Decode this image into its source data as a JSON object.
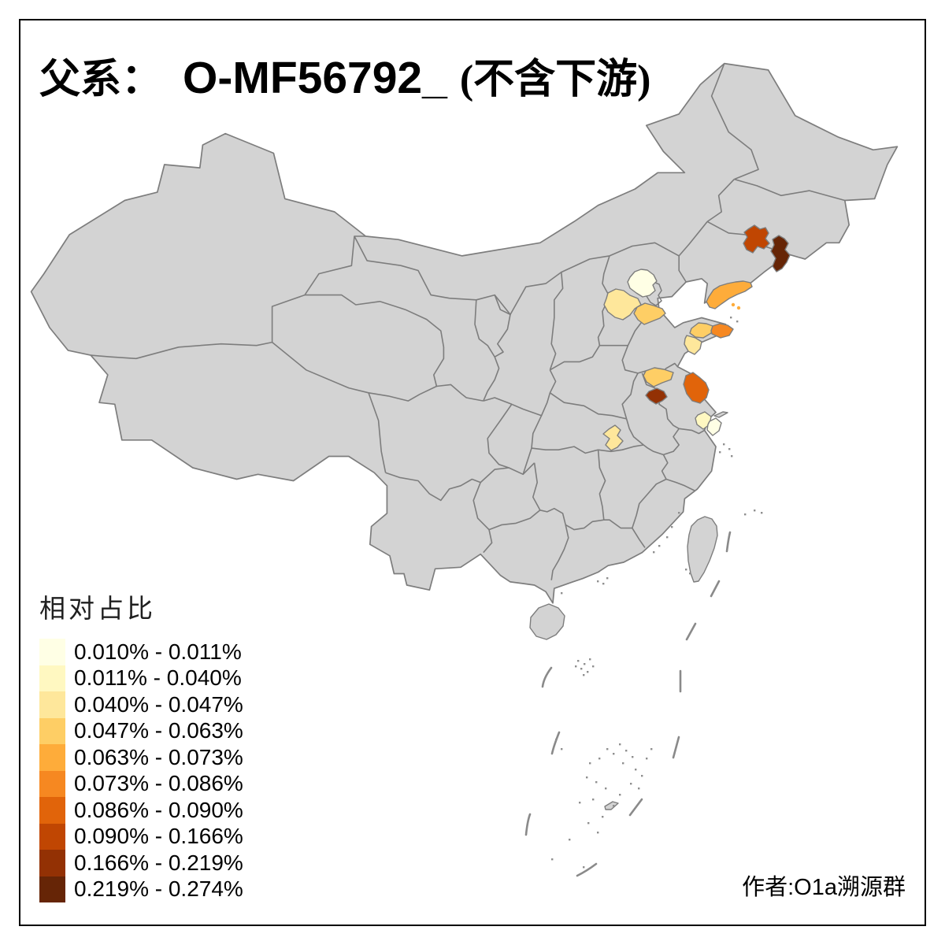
{
  "title": {
    "part1": "父系：",
    "part2": "O-MF56792_",
    "part3": "(不含下游)"
  },
  "legend": {
    "title": "相对占比",
    "items": [
      {
        "label": "0.010% - 0.011%",
        "color": "#FFFFE5"
      },
      {
        "label": "0.011% - 0.040%",
        "color": "#FFF8C1"
      },
      {
        "label": "0.040% - 0.047%",
        "color": "#FEE79B"
      },
      {
        "label": "0.047% - 0.063%",
        "color": "#FECE65"
      },
      {
        "label": "0.063% - 0.073%",
        "color": "#FEAC3A"
      },
      {
        "label": "0.073% - 0.086%",
        "color": "#F68821"
      },
      {
        "label": "0.086% - 0.090%",
        "color": "#E1640A"
      },
      {
        "label": "0.090% - 0.166%",
        "color": "#C04602"
      },
      {
        "label": "0.166% - 0.219%",
        "color": "#933104"
      },
      {
        "label": "0.219% - 0.274%",
        "color": "#662506"
      }
    ]
  },
  "map": {
    "land_fill": "#D3D3D3",
    "border_stroke": "#7D7D7D",
    "sea_fill": "#FFFFFF",
    "frame_color": "#000000"
  },
  "regions": [
    {
      "name": "beijing",
      "bin": 1
    },
    {
      "name": "hebei-baoding",
      "bin": 3
    },
    {
      "name": "hebei-cangzhou",
      "bin": 4
    },
    {
      "name": "liaoning-north",
      "bin": 8
    },
    {
      "name": "liaoning-east",
      "bin": 10
    },
    {
      "name": "liaodong-peninsula",
      "bin": 5
    },
    {
      "name": "shandong-yantai",
      "bin": 4
    },
    {
      "name": "shandong-weihai",
      "bin": 6
    },
    {
      "name": "shandong-south",
      "bin": 3
    },
    {
      "name": "jiangsu-north",
      "bin": 4
    },
    {
      "name": "anhui-bengbu",
      "bin": 9
    },
    {
      "name": "jiangsu-yancheng",
      "bin": 7
    },
    {
      "name": "jiangsu-nantong",
      "bin": 2
    },
    {
      "name": "shanghai-area",
      "bin": 1
    },
    {
      "name": "hubei-wuhan",
      "bin": 3
    }
  ],
  "attribution": "作者:O1a溯源群"
}
